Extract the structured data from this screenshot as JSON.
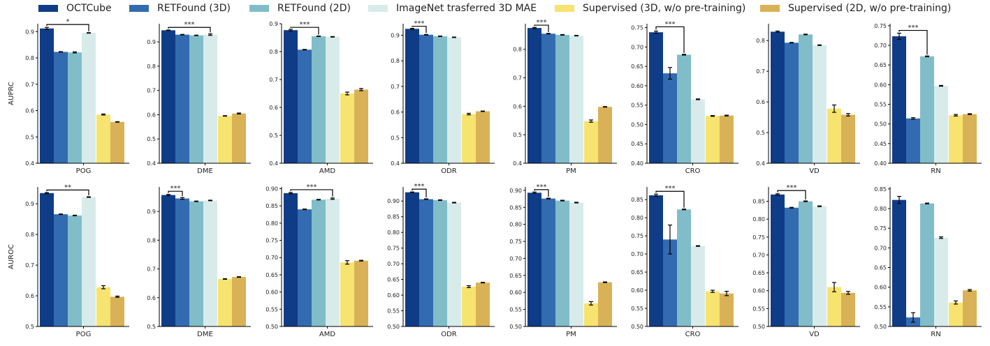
{
  "legend": [
    {
      "name": "OCTCube",
      "color": "#0f3c87"
    },
    {
      "name": "RETFound (3D)",
      "color": "#326bb0"
    },
    {
      "name": "RETFound (2D)",
      "color": "#80bdc9"
    },
    {
      "name": "ImageNet trasferred 3D MAE",
      "color": "#d8ebeb"
    },
    {
      "name": "Supervised (3D, w/o pre-training)",
      "color": "#f7e36f"
    },
    {
      "name": "Supervised (2D, w/o pre-training)",
      "color": "#d9b257"
    }
  ],
  "row_labels": [
    "AUPRC",
    "AUROC"
  ],
  "chart_data": [
    {
      "type": "bar",
      "row": 0,
      "xlabel": "POG",
      "ylabel": "AUPRC",
      "ylim": [
        0.4,
        0.93
      ],
      "yticks": [
        "0.4",
        "0.5",
        "0.6",
        "0.7",
        "0.8",
        "0.9"
      ],
      "values": [
        0.912,
        0.823,
        0.821,
        0.895,
        0.585,
        0.557
      ],
      "errors": [
        0.004,
        0.001,
        0.002,
        0.001,
        0.002,
        0.001
      ],
      "sig": {
        "label": "*",
        "from": 0,
        "to": 3,
        "y": 0.927
      }
    },
    {
      "type": "bar",
      "row": 0,
      "xlabel": "DME",
      "ylabel": "",
      "ylim": [
        0.4,
        0.975
      ],
      "yticks": [
        "0.4",
        "0.5",
        "0.6",
        "0.7",
        "0.8",
        "0.9"
      ],
      "values": [
        0.948,
        0.93,
        0.927,
        0.93,
        0.595,
        0.605
      ],
      "errors": [
        0.001,
        0.001,
        0.001,
        0.003,
        0.001,
        0.002
      ],
      "sig": {
        "label": "***",
        "from": 0,
        "to": 3,
        "y": 0.96
      }
    },
    {
      "type": "bar",
      "row": 0,
      "xlabel": "AMD",
      "ylabel": "",
      "ylim": [
        0.4,
        0.9
      ],
      "yticks": [
        "0.4",
        "0.5",
        "0.6",
        "0.7",
        "0.8",
        "0.9"
      ],
      "values": [
        0.877,
        0.807,
        0.855,
        0.853,
        0.65,
        0.664
      ],
      "errors": [
        0.003,
        0.001,
        0.001,
        0.001,
        0.005,
        0.004
      ],
      "sig": {
        "label": "***",
        "from": 0,
        "to": 2,
        "y": 0.887
      }
    },
    {
      "type": "bar",
      "row": 0,
      "xlabel": "ODR",
      "ylabel": "",
      "ylim": [
        0.4,
        0.945
      ],
      "yticks": [
        "0.4",
        "0.5",
        "0.6",
        "0.7",
        "0.8",
        "0.9"
      ],
      "values": [
        0.925,
        0.902,
        0.896,
        0.892,
        0.592,
        0.603
      ],
      "errors": [
        0.002,
        0.001,
        0.001,
        0.001,
        0.003,
        0.001
      ],
      "sig": {
        "label": "***",
        "from": 0,
        "to": 1,
        "y": 0.935
      }
    },
    {
      "type": "bar",
      "row": 0,
      "xlabel": "PM",
      "ylabel": "",
      "ylim": [
        0.4,
        0.89
      ],
      "yticks": [
        "0.4",
        "0.5",
        "0.6",
        "0.7",
        "0.8"
      ],
      "values": [
        0.875,
        0.855,
        0.851,
        0.848,
        0.548,
        0.598
      ],
      "errors": [
        0.002,
        0.001,
        0.001,
        0.001,
        0.004,
        0.001
      ],
      "sig": {
        "label": "***",
        "from": 0,
        "to": 1,
        "y": 0.885
      }
    },
    {
      "type": "bar",
      "row": 0,
      "xlabel": "CRO",
      "ylabel": "",
      "ylim": [
        0.4,
        0.76
      ],
      "yticks": [
        "0.40",
        "0.45",
        "0.50",
        "0.55",
        "0.60",
        "0.65",
        "0.70",
        "0.75"
      ],
      "values": [
        0.738,
        0.632,
        0.68,
        0.565,
        0.522,
        0.523
      ],
      "errors": [
        0.003,
        0.015,
        0.001,
        0.001,
        0.001,
        0.001
      ],
      "sig": {
        "label": "***",
        "from": 0,
        "to": 2,
        "y": 0.752
      }
    },
    {
      "type": "bar",
      "row": 0,
      "xlabel": "VD",
      "ylabel": "",
      "ylim": [
        0.4,
        0.855
      ],
      "yticks": [
        "0.4",
        "0.5",
        "0.6",
        "0.7",
        "0.8"
      ],
      "values": [
        0.829,
        0.793,
        0.82,
        0.785,
        0.578,
        0.558
      ],
      "errors": [
        0.002,
        0.001,
        0.001,
        0.001,
        0.012,
        0.004
      ]
    },
    {
      "type": "bar",
      "row": 0,
      "xlabel": "RN",
      "ylabel": "",
      "ylim": [
        0.4,
        0.755
      ],
      "yticks": [
        "0.40",
        "0.45",
        "0.50",
        "0.55",
        "0.60",
        "0.65",
        "0.70",
        "0.75"
      ],
      "values": [
        0.723,
        0.514,
        0.672,
        0.597,
        0.522,
        0.525
      ],
      "errors": [
        0.008,
        0.002,
        0.001,
        0.001,
        0.002,
        0.001
      ],
      "sig": {
        "label": "***",
        "from": 0,
        "to": 2,
        "y": 0.738
      }
    },
    {
      "type": "bar",
      "row": 1,
      "xlabel": "POG",
      "ylabel": "AUROC",
      "ylim": [
        0.5,
        0.955
      ],
      "yticks": [
        "0.5",
        "0.6",
        "0.7",
        "0.8",
        "0.9"
      ],
      "values": [
        0.935,
        0.866,
        0.862,
        0.922,
        0.628,
        0.597
      ],
      "errors": [
        0.002,
        0.001,
        0.001,
        0.001,
        0.005,
        0.002
      ],
      "sig": {
        "label": "**",
        "from": 0,
        "to": 3,
        "y": 0.945
      }
    },
    {
      "type": "bar",
      "row": 1,
      "xlabel": "DME",
      "ylabel": "",
      "ylim": [
        0.5,
        0.985
      ],
      "yticks": [
        "0.5",
        "0.6",
        "0.7",
        "0.8",
        "0.9"
      ],
      "values": [
        0.957,
        0.945,
        0.935,
        0.938,
        0.665,
        0.672
      ],
      "errors": [
        0.002,
        0.003,
        0.001,
        0.001,
        0.001,
        0.001
      ],
      "sig": {
        "label": "***",
        "from": 0,
        "to": 1,
        "y": 0.97
      }
    },
    {
      "type": "bar",
      "row": 1,
      "xlabel": "AMD",
      "ylabel": "",
      "ylim": [
        0.5,
        0.905
      ],
      "yticks": [
        "0.50",
        "0.55",
        "0.60",
        "0.65",
        "0.70",
        "0.75",
        "0.80",
        "0.85",
        "0.90"
      ],
      "values": [
        0.887,
        0.84,
        0.868,
        0.871,
        0.686,
        0.691
      ],
      "errors": [
        0.002,
        0.001,
        0.001,
        0.002,
        0.005,
        0.001
      ],
      "sig": {
        "label": "***",
        "from": 0,
        "to": 3,
        "y": 0.897
      }
    },
    {
      "type": "bar",
      "row": 1,
      "xlabel": "ODR",
      "ylabel": "",
      "ylim": [
        0.5,
        0.945
      ],
      "yticks": [
        "0.50",
        "0.55",
        "0.60",
        "0.65",
        "0.70",
        "0.75",
        "0.80",
        "0.85",
        "0.90"
      ],
      "values": [
        0.928,
        0.906,
        0.903,
        0.895,
        0.627,
        0.64
      ],
      "errors": [
        0.001,
        0.001,
        0.001,
        0.001,
        0.003,
        0.001
      ],
      "sig": {
        "label": "***",
        "from": 0,
        "to": 1,
        "y": 0.938
      }
    },
    {
      "type": "bar",
      "row": 1,
      "xlabel": "PM",
      "ylabel": "",
      "ylim": [
        0.5,
        0.91
      ],
      "yticks": [
        "0.50",
        "0.55",
        "0.60",
        "0.65",
        "0.70",
        "0.75",
        "0.80",
        "0.85",
        "0.90"
      ],
      "values": [
        0.893,
        0.876,
        0.87,
        0.864,
        0.568,
        0.63
      ],
      "errors": [
        0.002,
        0.001,
        0.001,
        0.001,
        0.005,
        0.001
      ],
      "sig": {
        "label": "***",
        "from": 0,
        "to": 1,
        "y": 0.902
      }
    },
    {
      "type": "bar",
      "row": 1,
      "xlabel": "CRO",
      "ylabel": "",
      "ylim": [
        0.5,
        0.885
      ],
      "yticks": [
        "0.50",
        "0.55",
        "0.60",
        "0.65",
        "0.70",
        "0.75",
        "0.80",
        "0.85"
      ],
      "values": [
        0.862,
        0.74,
        0.823,
        0.722,
        0.597,
        0.591
      ],
      "errors": [
        0.003,
        0.04,
        0.001,
        0.001,
        0.003,
        0.006
      ],
      "sig": {
        "label": "***",
        "from": 0,
        "to": 2,
        "y": 0.873
      }
    },
    {
      "type": "bar",
      "row": 1,
      "xlabel": "VD",
      "ylabel": "",
      "ylim": [
        0.5,
        0.89
      ],
      "yticks": [
        "0.50",
        "0.55",
        "0.60",
        "0.65",
        "0.70",
        "0.75",
        "0.80",
        "0.85"
      ],
      "values": [
        0.869,
        0.832,
        0.85,
        0.836,
        0.61,
        0.594
      ],
      "errors": [
        0.002,
        0.001,
        0.001,
        0.001,
        0.013,
        0.004
      ],
      "sig": {
        "label": "***",
        "from": 0,
        "to": 2,
        "y": 0.88
      }
    },
    {
      "type": "bar",
      "row": 1,
      "xlabel": "RN",
      "ylabel": "",
      "ylim": [
        0.5,
        0.855
      ],
      "yticks": [
        "0.50",
        "0.55",
        "0.60",
        "0.65",
        "0.70",
        "0.75",
        "0.80",
        "0.85"
      ],
      "values": [
        0.822,
        0.523,
        0.813,
        0.726,
        0.561,
        0.592
      ],
      "errors": [
        0.009,
        0.012,
        0.001,
        0.002,
        0.004,
        0.002
      ]
    }
  ]
}
